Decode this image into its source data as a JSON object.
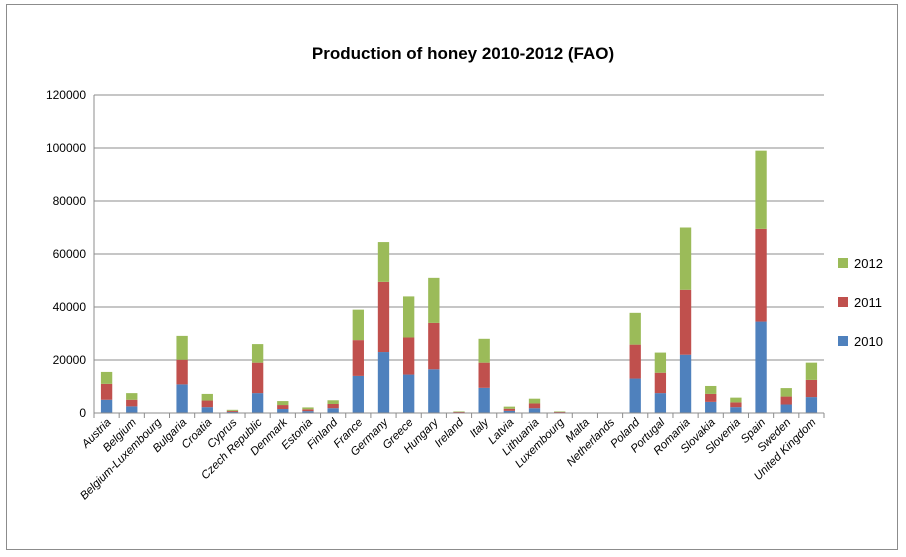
{
  "chart_data": {
    "type": "bar",
    "stacked": true,
    "title": "Production of honey 2010-2012 (FAO)",
    "xlabel": "",
    "ylabel": "",
    "ylim": [
      0,
      120000
    ],
    "yticks": [
      0,
      20000,
      40000,
      60000,
      80000,
      100000,
      120000
    ],
    "grid": true,
    "legend_position": "right",
    "categories": [
      "Austria",
      "Belgium",
      "Belgium-Luxembourg",
      "Bulgaria",
      "Croatia",
      "Cyprus",
      "Czech Republic",
      "Denmark",
      "Estonia",
      "Finland",
      "France",
      "Germany",
      "Greece",
      "Hungary",
      "Ireland",
      "Italy",
      "Latvia",
      "Lithuania",
      "Luxembourg",
      "Malta",
      "Netherlands",
      "Poland",
      "Portugal",
      "Romania",
      "Slovakia",
      "Slovenia",
      "Spain",
      "Sweden",
      "United Kingdom"
    ],
    "series": [
      {
        "name": "2010",
        "color": "#4f81bd",
        "values": [
          5000,
          2500,
          0,
          10800,
          2200,
          400,
          7500,
          1500,
          700,
          1800,
          14000,
          23000,
          14500,
          16500,
          200,
          9500,
          800,
          1800,
          200,
          0,
          0,
          13000,
          7500,
          22000,
          4200,
          2200,
          34500,
          3200,
          6000
        ]
      },
      {
        "name": "2011",
        "color": "#c0504d",
        "values": [
          6000,
          2500,
          0,
          9300,
          2500,
          400,
          11500,
          1500,
          700,
          1600,
          13500,
          26500,
          14000,
          17500,
          200,
          9500,
          800,
          1800,
          200,
          0,
          0,
          12800,
          7700,
          24500,
          3000,
          1800,
          35000,
          3000,
          6500
        ]
      },
      {
        "name": "2012",
        "color": "#9bbb59",
        "values": [
          4500,
          2500,
          0,
          9000,
          2500,
          400,
          7000,
          1500,
          700,
          1400,
          11500,
          15000,
          15500,
          17000,
          200,
          9000,
          800,
          1800,
          200,
          0,
          0,
          12000,
          7600,
          23500,
          3000,
          1800,
          29500,
          3200,
          6500
        ]
      }
    ]
  }
}
